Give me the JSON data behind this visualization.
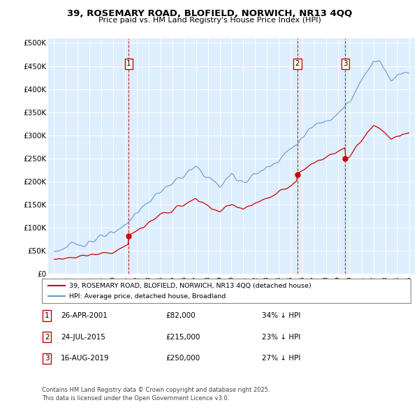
{
  "title_line1": "39, ROSEMARY ROAD, BLOFIELD, NORWICH, NR13 4QQ",
  "title_line2": "Price paid vs. HM Land Registry's House Price Index (HPI)",
  "yticks": [
    0,
    50000,
    100000,
    150000,
    200000,
    250000,
    300000,
    350000,
    400000,
    450000,
    500000
  ],
  "ytick_labels": [
    "£0",
    "£50K",
    "£100K",
    "£150K",
    "£200K",
    "£250K",
    "£300K",
    "£350K",
    "£400K",
    "£450K",
    "£500K"
  ],
  "ylim": [
    0,
    510000
  ],
  "xlim": [
    1994.5,
    2025.5
  ],
  "sale_color": "#cc0000",
  "hpi_color": "#6699cc",
  "plot_bg_color": "#ddeeff",
  "legend_entries": [
    "39, ROSEMARY ROAD, BLOFIELD, NORWICH, NR13 4QQ (detached house)",
    "HPI: Average price, detached house, Broadland"
  ],
  "footer_line1": "Contains HM Land Registry data © Crown copyright and database right 2025.",
  "footer_line2": "This data is licensed under the Open Government Licence v3.0.",
  "table_rows": [
    {
      "num": "1",
      "date": "26-APR-2001",
      "price": "£82,000",
      "desc": "34% ↓ HPI"
    },
    {
      "num": "2",
      "date": "24-JUL-2015",
      "price": "£215,000",
      "desc": "23% ↓ HPI"
    },
    {
      "num": "3",
      "date": "16-AUG-2019",
      "price": "£250,000",
      "desc": "27% ↓ HPI"
    }
  ],
  "vline_dates": [
    2001.32,
    2015.56,
    2019.62
  ],
  "sale_prices": [
    82000,
    215000,
    250000
  ],
  "xtick_years": [
    1995,
    1996,
    1997,
    1998,
    1999,
    2000,
    2001,
    2002,
    2003,
    2004,
    2005,
    2006,
    2007,
    2008,
    2009,
    2010,
    2011,
    2012,
    2013,
    2014,
    2015,
    2016,
    2017,
    2018,
    2019,
    2020,
    2021,
    2022,
    2023,
    2024,
    2025
  ]
}
